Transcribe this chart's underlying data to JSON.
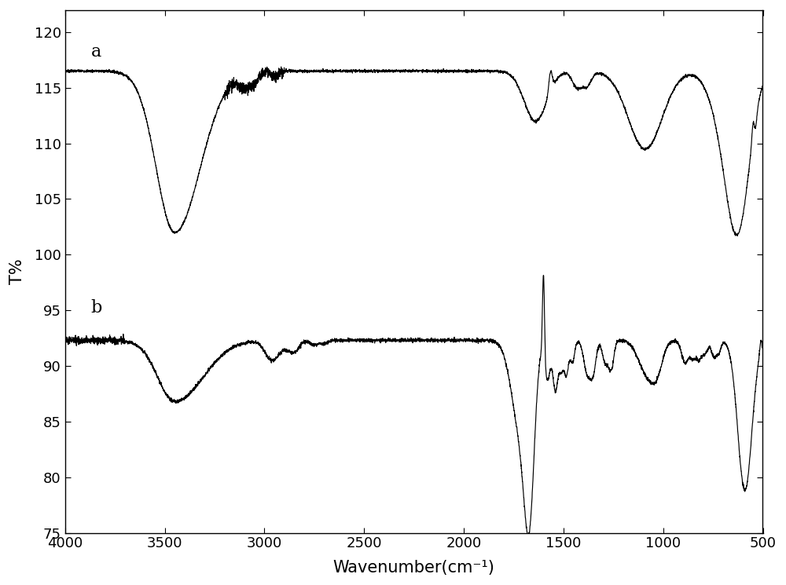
{
  "title": "",
  "xlabel": "Wavenumber(cm⁻¹)",
  "ylabel": "T%",
  "xlim": [
    500,
    4000
  ],
  "ylim": [
    75,
    122
  ],
  "xticks": [
    500,
    1000,
    1500,
    2000,
    2500,
    3000,
    3500,
    4000
  ],
  "yticks": [
    75,
    80,
    85,
    90,
    95,
    100,
    105,
    110,
    115,
    120
  ],
  "label_a": "a",
  "label_b": "b",
  "line_color": "#000000",
  "background_color": "#ffffff",
  "figsize": [
    10.0,
    7.45
  ],
  "dpi": 100
}
